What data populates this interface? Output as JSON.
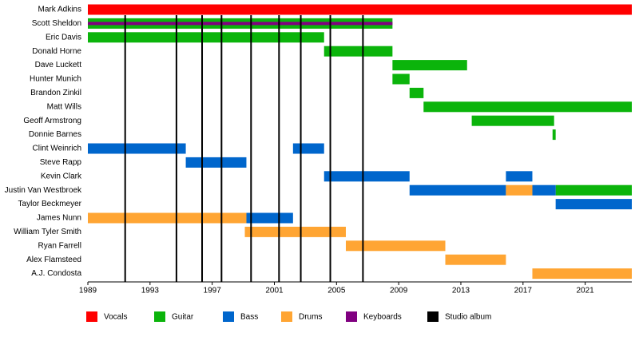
{
  "chart_data": {
    "type": "timeline",
    "categories": [
      "Mark Adkins",
      "Scott Sheldon",
      "Eric Davis",
      "Donald Horne",
      "Dave Luckett",
      "Hunter Munich",
      "Brandon Zinkil",
      "Matt Wills",
      "Geoff Armstrong",
      "Donnie Barnes",
      "Clint Weinrich",
      "Steve Rapp",
      "Kevin Clark",
      "Justin Van Westbroek",
      "Taylor Beckmeyer",
      "James Nunn",
      "William Tyler Smith",
      "Ryan Farrell",
      "Alex Flamsteed",
      "A.J. Condosta"
    ],
    "series": [
      {
        "name": "Vocals",
        "color": "#ff0000",
        "values": [
          [
            [
              1989,
              2024
            ]
          ],
          [],
          [],
          [],
          [],
          [],
          [],
          [],
          [],
          [],
          [],
          [],
          [],
          [],
          [],
          [],
          [],
          [],
          [],
          []
        ]
      },
      {
        "name": "Guitar",
        "color": "#0bb40b",
        "values": [
          [],
          [
            [
              1989,
              2008.6
            ]
          ],
          [
            [
              1989,
              2004.2
            ]
          ],
          [
            [
              2004.2,
              2008.6
            ]
          ],
          [
            [
              2008.6,
              2013.4
            ]
          ],
          [
            [
              2008.6,
              2009.7
            ]
          ],
          [
            [
              2009.7,
              2010.6
            ]
          ],
          [
            [
              2010.6,
              2024
            ]
          ],
          [
            [
              2013.7,
              2019.0
            ]
          ],
          [
            [
              2018.9,
              2019.1
            ]
          ],
          [],
          [],
          [],
          [
            [
              2019.1,
              2024
            ]
          ],
          [],
          [],
          [],
          [],
          [],
          []
        ]
      },
      {
        "name": "Bass",
        "color": "#0066cc",
        "values": [
          [],
          [],
          [],
          [],
          [],
          [],
          [],
          [],
          [],
          [],
          [
            [
              1989,
              1995.3
            ],
            [
              2002.2,
              2004.2
            ]
          ],
          [
            [
              1995.3,
              1999.2
            ]
          ],
          [
            [
              2004.2,
              2009.7
            ],
            [
              2015.9,
              2017.6
            ]
          ],
          [
            [
              2009.7,
              2015.9
            ],
            [
              2017.6,
              2019.1
            ]
          ],
          [
            [
              2019.1,
              2024
            ]
          ],
          [
            [
              1999.2,
              2002.2
            ]
          ],
          [],
          [],
          [],
          []
        ]
      },
      {
        "name": "Drums",
        "color": "#ffa533",
        "values": [
          [],
          [],
          [],
          [],
          [],
          [],
          [],
          [],
          [],
          [],
          [],
          [],
          [],
          [
            [
              2015.9,
              2017.6
            ]
          ],
          [],
          [
            [
              1989,
              1999.2
            ]
          ],
          [
            [
              1999.1,
              2005.6
            ]
          ],
          [
            [
              2005.6,
              2012.0
            ]
          ],
          [
            [
              2012.0,
              2015.9
            ]
          ],
          [
            [
              2017.6,
              2024
            ]
          ]
        ]
      },
      {
        "name": "Keyboards",
        "color": "#800080",
        "values": [
          [],
          [
            [
              1989,
              2008.6
            ]
          ],
          [],
          [],
          [],
          [],
          [],
          [],
          [],
          [],
          [],
          [],
          [],
          [],
          [],
          [],
          [],
          [],
          [],
          []
        ]
      }
    ],
    "albums": {
      "name": "Studio album",
      "color": "#000000",
      "values": [
        1991.4,
        1994.7,
        1996.35,
        1997.6,
        1999.5,
        2001.3,
        2002.7,
        2004.6,
        2006.7
      ]
    },
    "xlim": [
      1989,
      2024
    ],
    "xticks": [
      1989,
      1993,
      1997,
      2001,
      2005,
      2009,
      2013,
      2017,
      2021
    ]
  }
}
